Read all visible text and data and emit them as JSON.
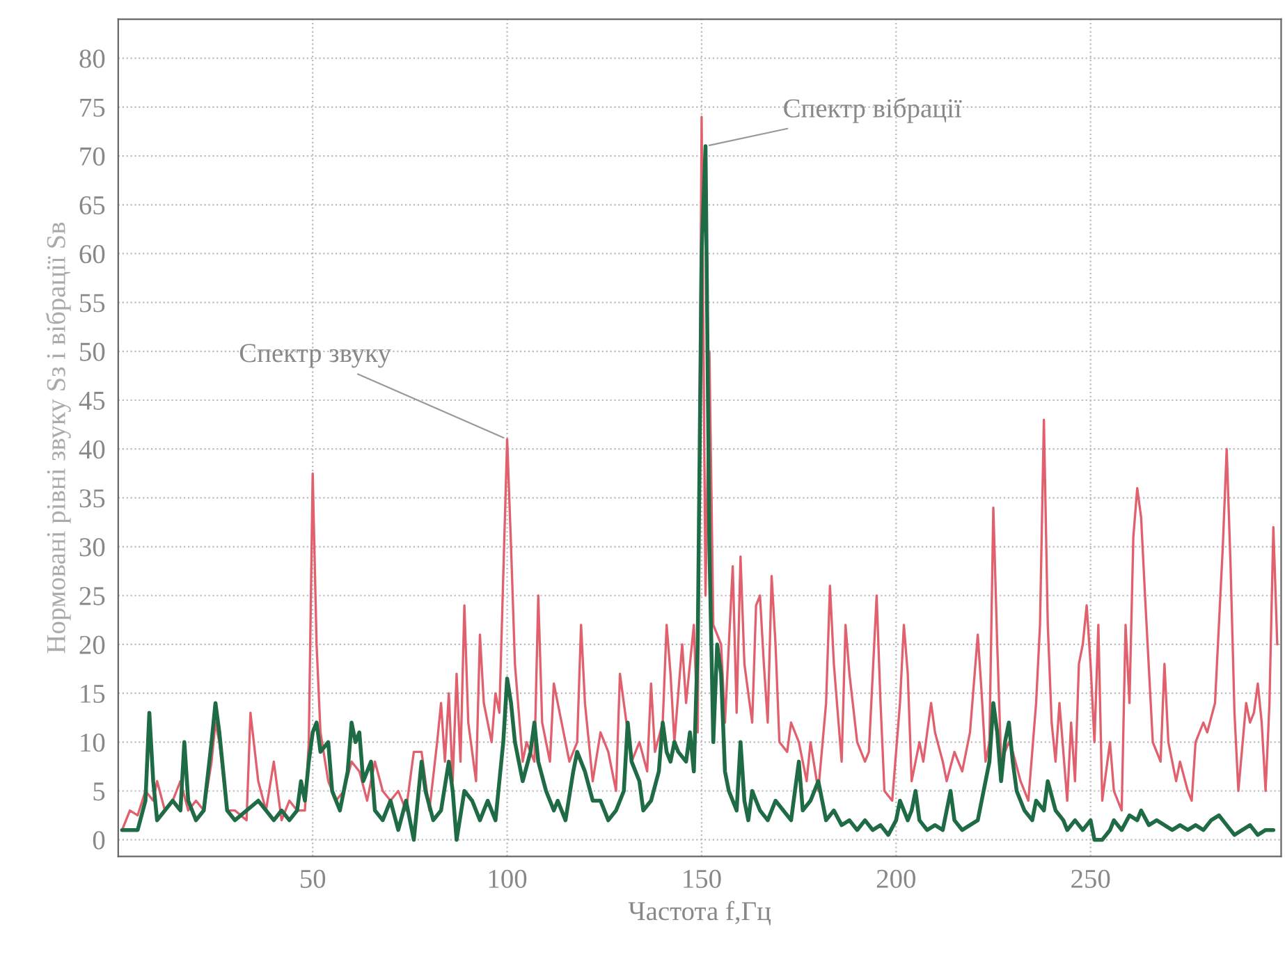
{
  "chart_data": {
    "type": "line",
    "xlabel": "Частота f,Гц",
    "ylabel": "Нормовані рівні звуку Sз і вібрації Sв",
    "xlim": [
      0,
      299
    ],
    "ylim": [
      -1.7,
      84
    ],
    "xticks": [
      50,
      100,
      150,
      200,
      250
    ],
    "yticks": [
      0,
      5,
      10,
      15,
      20,
      25,
      30,
      35,
      40,
      45,
      50,
      55,
      60,
      65,
      70,
      75,
      80
    ],
    "grid": true,
    "line_style": "solid",
    "marker": "none",
    "annotations": [
      {
        "text": "Спектр звуку",
        "x": 100,
        "y": 41
      },
      {
        "text": "Спектр вібрації",
        "x": 151,
        "y": 71
      }
    ],
    "series": [
      {
        "color": "#e0606e",
        "x": [
          1,
          3,
          5,
          7,
          8,
          9,
          10,
          12,
          14,
          16,
          17,
          18,
          20,
          22,
          24,
          25,
          26,
          28,
          30,
          33,
          34,
          36,
          38,
          40,
          42,
          44,
          46,
          48,
          49,
          50,
          51,
          52,
          54,
          56,
          58,
          60,
          62,
          64,
          66,
          68,
          70,
          72,
          74,
          76,
          77,
          78,
          80,
          82,
          83,
          84,
          85,
          86,
          87,
          88,
          89,
          90,
          92,
          93,
          94,
          96,
          97,
          98,
          100,
          101,
          102,
          104,
          105,
          107,
          108,
          109,
          111,
          112,
          114,
          116,
          118,
          119,
          120,
          122,
          124,
          126,
          128,
          129,
          130,
          132,
          134,
          136,
          137,
          138,
          140,
          141,
          142,
          143,
          145,
          146,
          148,
          149,
          150,
          151,
          152,
          153,
          155,
          156,
          157,
          158,
          159,
          160,
          161,
          163,
          164,
          165,
          166,
          167,
          168,
          169,
          170,
          172,
          173,
          175,
          177,
          178,
          180,
          182,
          183,
          184,
          186,
          187,
          188,
          190,
          192,
          193,
          195,
          196,
          197,
          199,
          201,
          202,
          203,
          204,
          206,
          207,
          209,
          210,
          212,
          213,
          215,
          217,
          219,
          221,
          222,
          223,
          224,
          225,
          226,
          227,
          229,
          230,
          232,
          234,
          236,
          237,
          238,
          239,
          240,
          241,
          242,
          243,
          244,
          245,
          246,
          247,
          248,
          249,
          250,
          251,
          252,
          253,
          255,
          256,
          258,
          259,
          260,
          261,
          262,
          263,
          264,
          266,
          268,
          269,
          270,
          272,
          273,
          275,
          276,
          277,
          279,
          280,
          282,
          283,
          284,
          285,
          286,
          287,
          288,
          290,
          291,
          292,
          293,
          294,
          295,
          296,
          297,
          298
        ],
        "values": [
          1,
          3,
          2.5,
          5,
          null,
          4,
          6,
          3,
          4,
          6,
          null,
          3,
          4,
          3,
          8,
          12,
          10,
          3,
          3,
          2,
          13,
          6,
          3,
          8,
          2,
          4,
          3,
          3,
          10,
          37.5,
          20,
          11,
          6,
          4,
          5,
          8,
          7,
          4,
          8,
          5,
          4,
          5,
          3,
          9,
          null,
          9,
          3,
          10,
          14,
          8,
          15,
          6,
          17,
          8,
          24,
          12,
          6,
          21,
          14,
          10,
          15,
          13,
          41,
          30,
          18,
          8,
          10,
          8,
          25,
          12,
          8,
          16,
          12,
          8,
          10,
          22,
          14,
          6,
          11,
          9,
          5,
          17,
          14,
          8,
          10,
          7,
          16,
          9,
          12,
          22,
          17,
          10,
          20,
          14,
          22,
          11,
          74,
          25,
          50,
          22,
          20,
          12,
          20,
          28,
          13,
          29,
          18,
          12,
          24,
          25,
          18,
          12,
          27,
          20,
          10,
          9,
          12,
          10,
          6,
          10,
          5,
          14,
          26,
          18,
          8,
          22,
          17,
          10,
          8,
          9,
          25,
          14,
          5,
          4,
          14,
          22,
          17,
          6,
          10,
          8,
          14,
          11,
          8,
          6,
          9,
          7,
          11,
          21,
          15,
          8,
          10,
          34,
          20,
          8,
          10,
          9,
          6,
          4,
          14,
          22,
          43,
          22,
          12,
          8,
          14,
          9,
          4,
          12,
          6,
          18,
          20,
          24,
          18,
          10,
          22,
          4,
          10,
          5,
          3,
          22,
          14,
          31,
          36,
          33,
          25,
          10,
          8,
          18,
          10,
          6,
          8,
          5,
          4,
          10,
          12,
          11,
          14,
          22,
          30,
          40,
          28,
          13,
          5,
          14,
          12,
          13,
          16,
          12,
          5,
          14,
          32,
          20
        ]
      },
      {
        "color": "#1f6b45",
        "x": [
          1,
          3,
          5,
          7,
          8,
          9,
          10,
          12,
          14,
          16,
          17,
          18,
          20,
          22,
          24,
          25,
          26,
          28,
          30,
          33,
          36,
          38,
          40,
          42,
          44,
          46,
          47,
          48,
          49,
          50,
          51,
          52,
          54,
          55,
          57,
          59,
          60,
          61,
          62,
          63,
          65,
          66,
          68,
          70,
          72,
          74,
          76,
          78,
          79,
          81,
          83,
          85,
          86,
          87,
          89,
          91,
          93,
          95,
          97,
          99,
          100,
          101,
          102,
          103,
          104,
          106,
          107,
          108,
          110,
          112,
          113,
          115,
          117,
          118,
          120,
          122,
          124,
          126,
          128,
          130,
          131,
          132,
          134,
          135,
          137,
          139,
          140,
          141,
          142,
          143,
          144,
          146,
          147,
          148,
          149,
          150,
          151,
          152,
          153,
          154,
          155,
          156,
          157,
          158,
          159,
          160,
          161,
          162,
          163,
          165,
          167,
          169,
          171,
          173,
          175,
          176,
          178,
          180,
          182,
          184,
          186,
          188,
          190,
          192,
          194,
          196,
          198,
          200,
          201,
          203,
          204,
          205,
          206,
          208,
          210,
          212,
          214,
          215,
          217,
          219,
          221,
          223,
          224,
          225,
          226,
          227,
          228,
          229,
          230,
          231,
          233,
          235,
          236,
          238,
          239,
          241,
          243,
          244,
          246,
          248,
          250,
          251,
          253,
          255,
          256,
          258,
          260,
          262,
          263,
          265,
          267,
          269,
          271,
          273,
          275,
          277,
          279,
          281,
          283,
          285,
          287,
          289,
          291,
          293,
          295,
          297
        ],
        "values": [
          1,
          1,
          1,
          4,
          13,
          6,
          2,
          3,
          4,
          3,
          10,
          4,
          2,
          3,
          10,
          14,
          11,
          3,
          2,
          3,
          4,
          3,
          2,
          3,
          2,
          3,
          6,
          4,
          8,
          11,
          12,
          9,
          10,
          5,
          3,
          7,
          12,
          10,
          11,
          6,
          8,
          3,
          2,
          4,
          1,
          4,
          0,
          8,
          5,
          2,
          3,
          8,
          5,
          0,
          5,
          4,
          2,
          4,
          2,
          10,
          16.5,
          14,
          10,
          8,
          6,
          9,
          12,
          8,
          5,
          3,
          4,
          2,
          7,
          9,
          7,
          4,
          4,
          2,
          3,
          5,
          12,
          8,
          6,
          3,
          4,
          7,
          12,
          9,
          8,
          10,
          9,
          8,
          11,
          7,
          20,
          60,
          71,
          30,
          10,
          20,
          17,
          7,
          5,
          4,
          3,
          10,
          4,
          2,
          5,
          3,
          2,
          4,
          3,
          2,
          8,
          3,
          4,
          6,
          2,
          3,
          1.5,
          2,
          1,
          2,
          1,
          1.5,
          0.5,
          2,
          4,
          2,
          3,
          5,
          2,
          1,
          1.5,
          1,
          5,
          2,
          1,
          1.5,
          2,
          6,
          8,
          14,
          11,
          6,
          10,
          12,
          8,
          5,
          3,
          2,
          4,
          3,
          6,
          3,
          2,
          1,
          2,
          1,
          2,
          0,
          0,
          1,
          2,
          1,
          2.5,
          2,
          3,
          1.5,
          2,
          1.5,
          1,
          1.5,
          1,
          1.5,
          1,
          2,
          2.5,
          1.5,
          0.5,
          1,
          1.5,
          0.5,
          1,
          1
        ]
      }
    ]
  }
}
